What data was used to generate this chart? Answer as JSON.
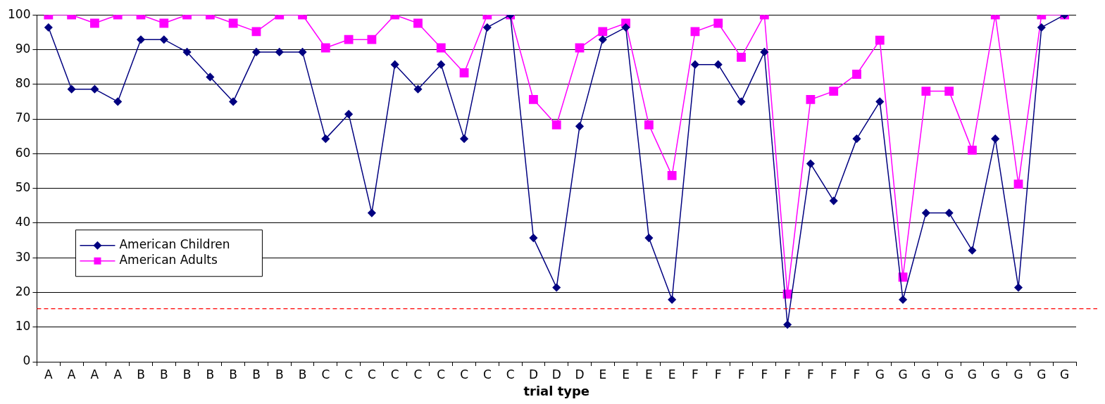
{
  "chart_data": {
    "type": "line",
    "xlabel": "trial type",
    "categories": [
      "A",
      "A",
      "A",
      "A",
      "B",
      "B",
      "B",
      "B",
      "B",
      "B",
      "B",
      "B",
      "C",
      "C",
      "C",
      "C",
      "C",
      "C",
      "C",
      "C",
      "C",
      "D",
      "D",
      "D",
      "E",
      "E",
      "E",
      "E",
      "F",
      "F",
      "F",
      "F",
      "F",
      "F",
      "F",
      "F",
      "G",
      "G",
      "G",
      "G",
      "G",
      "G",
      "G",
      "G",
      "G"
    ],
    "series": [
      {
        "name": "American Children",
        "color": "#000080",
        "marker": "diamond",
        "values": [
          96.4,
          78.6,
          78.6,
          75,
          92.9,
          92.9,
          89.3,
          82.1,
          75,
          89.3,
          89.3,
          89.3,
          64.3,
          71.4,
          42.9,
          85.7,
          78.6,
          85.7,
          64.3,
          96.4,
          100,
          35.7,
          21.4,
          67.9,
          92.9,
          96.4,
          35.7,
          17.9,
          85.7,
          85.7,
          75,
          89.3,
          10.7,
          57.1,
          46.4,
          64.3,
          75,
          17.9,
          42.9,
          42.9,
          32.1,
          64.3,
          21.4,
          96.4,
          100
        ]
      },
      {
        "name": "American Adults",
        "color": "#ff00ff",
        "marker": "square",
        "values": [
          100,
          100,
          97.6,
          100,
          100,
          97.6,
          100,
          100,
          97.6,
          95.2,
          100,
          100,
          90.5,
          92.9,
          92.9,
          100,
          97.6,
          90.5,
          83.3,
          100,
          100,
          75.6,
          68.3,
          90.5,
          95.2,
          97.6,
          68.3,
          53.7,
          95.2,
          97.6,
          87.8,
          100,
          19.5,
          75.6,
          78,
          82.9,
          92.7,
          24.4,
          78,
          78,
          61,
          100,
          51.2,
          100,
          100
        ]
      }
    ],
    "ylim": [
      0,
      100
    ],
    "yticks": [
      0,
      10,
      20,
      30,
      40,
      50,
      60,
      70,
      80,
      90,
      100
    ],
    "grid": "y",
    "legend": "left",
    "ref_lines": [
      {
        "axis": "y",
        "value": 15.3,
        "color": "#ff0000",
        "line_style": "dashed"
      }
    ]
  }
}
